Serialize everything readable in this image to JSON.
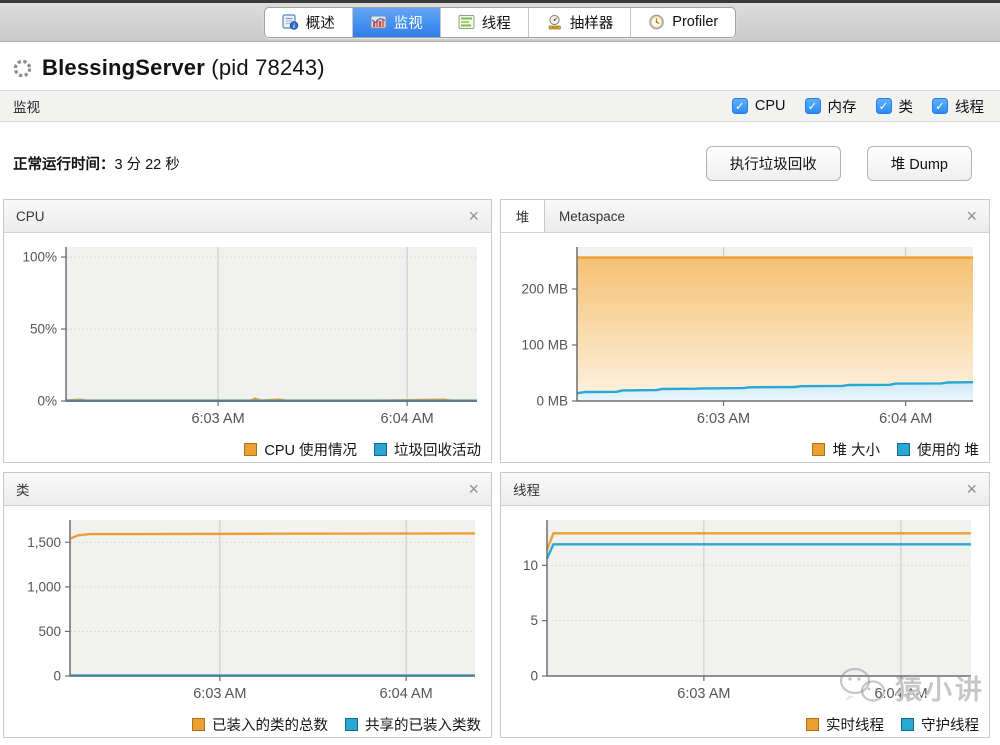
{
  "ui": {
    "close_glyph": "×",
    "check_glyph": "✓"
  },
  "tabs": {
    "selected_index": 1,
    "items": [
      {
        "name": "overview",
        "icon": "overview-icon",
        "label": "概述"
      },
      {
        "name": "monitor",
        "icon": "monitor-icon",
        "label": "监视"
      },
      {
        "name": "threads",
        "icon": "threads-icon",
        "label": "线程"
      },
      {
        "name": "sampler",
        "icon": "sampler-icon",
        "label": "抽样器"
      },
      {
        "name": "profiler",
        "icon": "profiler-icon",
        "label": "Profiler"
      }
    ]
  },
  "header": {
    "title": "BlessingServer",
    "pid_suffix": " (pid 78243)"
  },
  "toolbar": {
    "section_title": "监视",
    "checkboxes": [
      {
        "name": "cpu",
        "label": "CPU",
        "checked": true
      },
      {
        "name": "memory",
        "label": "内存",
        "checked": true
      },
      {
        "name": "classes",
        "label": "类",
        "checked": true
      },
      {
        "name": "threads",
        "label": "线程",
        "checked": true
      }
    ]
  },
  "status": {
    "uptime_label": "正常运行时间：",
    "uptime_value": "3 分 22 秒",
    "gc_button": "执行垃圾回收",
    "heap_dump_button": "堆 Dump"
  },
  "panels": {
    "cpu": {
      "title": "CPU"
    },
    "heap": {
      "tabs": [
        "堆",
        "Metaspace"
      ],
      "selected_tab": 0
    },
    "classes": {
      "title": "类"
    },
    "threads": {
      "title": "线程"
    }
  },
  "colors": {
    "accent_orange": "#eda031",
    "accent_blue": "#2ba7d3",
    "selected_tab_blue": "#2e7de9",
    "checkbox_blue": "#2b8cf6"
  },
  "watermark": {
    "text": "猿小讲"
  },
  "chart_data": [
    {
      "id": "cpu",
      "type": "line",
      "title": "CPU",
      "ylim": [
        0,
        107
      ],
      "yticks": [
        {
          "v": 0,
          "label": "0%"
        },
        {
          "v": 50,
          "label": "50%"
        },
        {
          "v": 100,
          "label": "100%"
        }
      ],
      "xticks": [
        {
          "f": 0.37,
          "label": "6:03 AM"
        },
        {
          "f": 0.83,
          "label": "6:04 AM"
        }
      ],
      "grid": true,
      "legend_position": "bottom-right",
      "series": [
        {
          "name": "CPU 使用情况",
          "color": "#eda031",
          "points": [
            [
              0,
              0.3
            ],
            [
              0.035,
              0.9
            ],
            [
              0.05,
              0.3
            ],
            [
              0.3,
              0.25
            ],
            [
              0.45,
              0.3
            ],
            [
              0.46,
              1.7
            ],
            [
              0.475,
              0.3
            ],
            [
              0.52,
              1.0
            ],
            [
              0.535,
              0.3
            ],
            [
              0.75,
              0.25
            ],
            [
              0.92,
              0.9
            ],
            [
              0.935,
              0.3
            ],
            [
              1,
              0.3
            ]
          ]
        },
        {
          "name": "垃圾回收活动",
          "color": "#2ba7d3",
          "points": [
            [
              0,
              0.15
            ],
            [
              1,
              0.15
            ]
          ]
        }
      ]
    },
    {
      "id": "heap",
      "type": "area",
      "title": "堆",
      "ylim": [
        0,
        275
      ],
      "yticks": [
        {
          "v": 0,
          "label": "0 MB"
        },
        {
          "v": 100,
          "label": "100 MB"
        },
        {
          "v": 200,
          "label": "200 MB"
        }
      ],
      "xticks": [
        {
          "f": 0.37,
          "label": "6:03 AM"
        },
        {
          "f": 0.83,
          "label": "6:04 AM"
        }
      ],
      "grid": true,
      "legend_position": "bottom-right",
      "series": [
        {
          "name": "堆 大小",
          "color": "#eda031",
          "fill_from": "#f5c173",
          "fill_to": "#fdf3e2",
          "points": [
            [
              0,
              256
            ],
            [
              1,
              256
            ]
          ]
        },
        {
          "name": "使用的 堆",
          "color": "#2ba7d3",
          "fill_from": "#cfeaf6",
          "fill_to": "#eaf7fc",
          "points": [
            [
              0,
              14
            ],
            [
              0.02,
              16
            ],
            [
              0.1,
              16.5
            ],
            [
              0.115,
              19
            ],
            [
              0.2,
              19.5
            ],
            [
              0.215,
              21.5
            ],
            [
              0.3,
              22
            ],
            [
              0.315,
              22.5
            ],
            [
              0.42,
              23
            ],
            [
              0.435,
              24.5
            ],
            [
              0.55,
              25
            ],
            [
              0.565,
              26.5
            ],
            [
              0.67,
              27
            ],
            [
              0.685,
              28.5
            ],
            [
              0.79,
              29
            ],
            [
              0.805,
              31
            ],
            [
              0.92,
              31.5
            ],
            [
              0.935,
              33
            ],
            [
              1,
              33.5
            ]
          ]
        }
      ]
    },
    {
      "id": "classes",
      "type": "line",
      "title": "类",
      "ylim": [
        0,
        1750
      ],
      "yticks": [
        {
          "v": 0,
          "label": "0"
        },
        {
          "v": 500,
          "label": "500"
        },
        {
          "v": 1000,
          "label": "1,000"
        },
        {
          "v": 1500,
          "label": "1,500"
        }
      ],
      "xticks": [
        {
          "f": 0.37,
          "label": "6:03 AM"
        },
        {
          "f": 0.83,
          "label": "6:04 AM"
        }
      ],
      "grid": true,
      "legend_position": "bottom-right",
      "series": [
        {
          "name": "已装入的类的总数",
          "color": "#eda031",
          "points": [
            [
              0,
              1540
            ],
            [
              0.02,
              1578
            ],
            [
              0.05,
              1592
            ],
            [
              0.5,
              1596
            ],
            [
              1,
              1600
            ]
          ]
        },
        {
          "name": "共享的已装入类数",
          "color": "#2ba7d3",
          "points": [
            [
              0,
              6
            ],
            [
              1,
              6
            ]
          ]
        }
      ]
    },
    {
      "id": "threads",
      "type": "line",
      "title": "线程",
      "ylim": [
        0,
        14.1
      ],
      "yticks": [
        {
          "v": 0,
          "label": "0"
        },
        {
          "v": 5,
          "label": "5"
        },
        {
          "v": 10,
          "label": "10"
        }
      ],
      "xticks": [
        {
          "f": 0.37,
          "label": "6:03 AM"
        },
        {
          "f": 0.835,
          "label": "6:04 AM"
        }
      ],
      "grid": true,
      "legend_position": "bottom-right",
      "series": [
        {
          "name": "实时线程",
          "color": "#eda031",
          "points": [
            [
              0,
              11.4
            ],
            [
              0.015,
              12.9
            ],
            [
              1,
              12.9
            ]
          ]
        },
        {
          "name": "守护线程",
          "color": "#2ba7d3",
          "points": [
            [
              0,
              10.6
            ],
            [
              0.015,
              11.9
            ],
            [
              1,
              11.9
            ]
          ]
        }
      ]
    }
  ]
}
